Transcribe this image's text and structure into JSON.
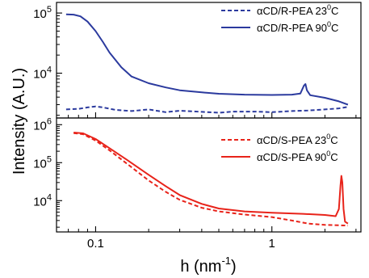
{
  "figure": {
    "ylabel": "Intensity (A.U.)",
    "xlabel_main": "h (nm",
    "xlabel_sup": "-1",
    "xlabel_tail": ")",
    "x_ticklabels": [
      "0.1",
      "1"
    ]
  },
  "chart_data": [
    {
      "type": "line",
      "panel": "top",
      "x_scale": "log",
      "y_scale": "log",
      "xlim": [
        0.06,
        3.2
      ],
      "ylim": [
        1800,
        150000
      ],
      "y_ticks": [
        {
          "value": 10000,
          "base": "10",
          "exp": "4"
        },
        {
          "value": 100000,
          "base": "10",
          "exp": "5"
        }
      ],
      "series": [
        {
          "name": "αCD/R-PEA 23⁰C",
          "label_pre": "αCD/R-PEA 23",
          "label_deg": "0",
          "label_post": "C",
          "color": "#2b3a9e",
          "style": "dashed",
          "points": [
            [
              0.068,
              2500
            ],
            [
              0.08,
              2550
            ],
            [
              0.09,
              2700
            ],
            [
              0.1,
              2800
            ],
            [
              0.11,
              2700
            ],
            [
              0.13,
              2450
            ],
            [
              0.16,
              2350
            ],
            [
              0.2,
              2500
            ],
            [
              0.25,
              2250
            ],
            [
              0.3,
              2380
            ],
            [
              0.4,
              2280
            ],
            [
              0.5,
              2200
            ],
            [
              0.6,
              2300
            ],
            [
              0.8,
              2300
            ],
            [
              1.0,
              2250
            ],
            [
              1.3,
              2350
            ],
            [
              1.6,
              2400
            ],
            [
              2.0,
              2500
            ],
            [
              2.4,
              2600
            ],
            [
              2.7,
              2750
            ]
          ]
        },
        {
          "name": "αCD/R-PEA 90⁰C",
          "label_pre": "αCD/R-PEA 90",
          "label_deg": "0",
          "label_post": "C",
          "color": "#2b3a9e",
          "style": "solid",
          "points": [
            [
              0.068,
              95000
            ],
            [
              0.075,
              94000
            ],
            [
              0.082,
              88000
            ],
            [
              0.09,
              72000
            ],
            [
              0.1,
              50000
            ],
            [
              0.11,
              33000
            ],
            [
              0.12,
              22000
            ],
            [
              0.14,
              12500
            ],
            [
              0.16,
              8800
            ],
            [
              0.2,
              6800
            ],
            [
              0.25,
              5800
            ],
            [
              0.3,
              5200
            ],
            [
              0.4,
              4800
            ],
            [
              0.5,
              4550
            ],
            [
              0.7,
              4400
            ],
            [
              1.0,
              4350
            ],
            [
              1.3,
              4400
            ],
            [
              1.45,
              4600
            ],
            [
              1.52,
              6200
            ],
            [
              1.55,
              6600
            ],
            [
              1.58,
              5200
            ],
            [
              1.65,
              4300
            ],
            [
              2.0,
              3900
            ],
            [
              2.4,
              3400
            ],
            [
              2.7,
              3000
            ]
          ]
        }
      ]
    },
    {
      "type": "line",
      "panel": "bottom",
      "x_scale": "log",
      "y_scale": "log",
      "xlim": [
        0.06,
        3.2
      ],
      "ylim": [
        1500,
        1500000
      ],
      "y_ticks": [
        {
          "value": 10000,
          "base": "10",
          "exp": "4"
        },
        {
          "value": 100000,
          "base": "10",
          "exp": "5"
        },
        {
          "value": 1000000,
          "base": "10",
          "exp": "6"
        }
      ],
      "series": [
        {
          "name": "αCD/S-PEA 23⁰C",
          "label_pre": "αCD/S-PEA 23",
          "label_deg": "0",
          "label_post": "C",
          "color": "#e8231a",
          "style": "dashed",
          "points": [
            [
              0.075,
              600000
            ],
            [
              0.085,
              560000
            ],
            [
              0.1,
              380000
            ],
            [
              0.12,
              210000
            ],
            [
              0.15,
              95000
            ],
            [
              0.2,
              34000
            ],
            [
              0.25,
              17000
            ],
            [
              0.3,
              10500
            ],
            [
              0.4,
              6500
            ],
            [
              0.5,
              5200
            ],
            [
              0.7,
              4300
            ],
            [
              1.0,
              3700
            ],
            [
              1.3,
              3000
            ],
            [
              1.6,
              2500
            ],
            [
              2.0,
              2300
            ],
            [
              2.4,
              2250
            ],
            [
              2.7,
              2200
            ]
          ]
        },
        {
          "name": "αCD/S-PEA 90⁰C",
          "label_pre": "αCD/S-PEA 90",
          "label_deg": "0",
          "label_post": "C",
          "color": "#e8231a",
          "style": "solid",
          "points": [
            [
              0.075,
              620000
            ],
            [
              0.085,
              590000
            ],
            [
              0.1,
              420000
            ],
            [
              0.12,
              240000
            ],
            [
              0.15,
              120000
            ],
            [
              0.2,
              48000
            ],
            [
              0.25,
              24000
            ],
            [
              0.3,
              14000
            ],
            [
              0.4,
              8200
            ],
            [
              0.5,
              6200
            ],
            [
              0.7,
              5200
            ],
            [
              1.0,
              4800
            ],
            [
              1.5,
              4500
            ],
            [
              2.0,
              4200
            ],
            [
              2.3,
              3900
            ],
            [
              2.4,
              6000
            ],
            [
              2.45,
              25000
            ],
            [
              2.48,
              45000
            ],
            [
              2.51,
              30000
            ],
            [
              2.55,
              6000
            ],
            [
              2.6,
              2800
            ],
            [
              2.7,
              2500
            ]
          ]
        }
      ]
    }
  ]
}
